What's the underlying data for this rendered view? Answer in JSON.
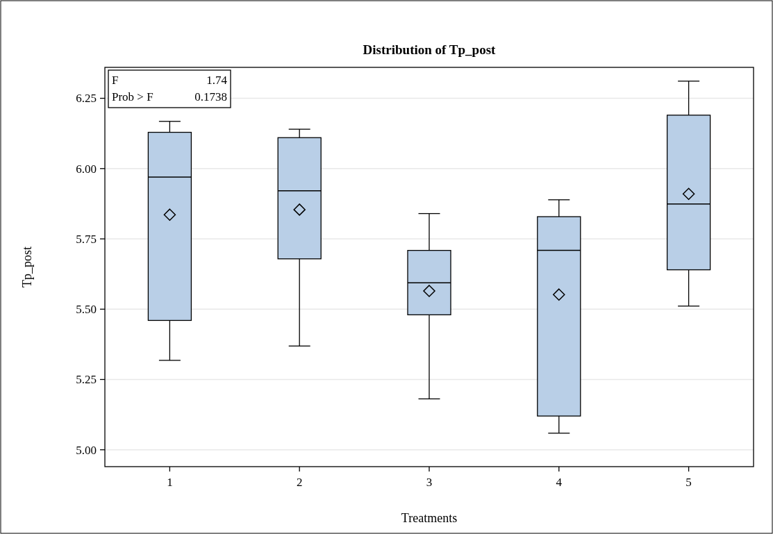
{
  "chart_data": {
    "type": "box",
    "title": "Distribution of Tp_post",
    "xlabel": "Treatments",
    "ylabel": "Tp_post",
    "categories": [
      "1",
      "2",
      "3",
      "4",
      "5"
    ],
    "series": [
      {
        "color": "#b9cfe7",
        "boxes": [
          {
            "low": 5.318,
            "q1": 5.46,
            "median": 5.97,
            "q3": 6.129,
            "high": 6.168,
            "mean": 5.836
          },
          {
            "low": 5.369,
            "q1": 5.679,
            "median": 5.921,
            "q3": 6.11,
            "high": 6.14,
            "mean": 5.854
          },
          {
            "low": 5.181,
            "q1": 5.48,
            "median": 5.594,
            "q3": 5.709,
            "high": 5.84,
            "mean": 5.565
          },
          {
            "low": 5.059,
            "q1": 5.12,
            "median": 5.709,
            "q3": 5.829,
            "high": 5.889,
            "mean": 5.552
          },
          {
            "low": 5.511,
            "q1": 5.64,
            "median": 5.874,
            "q3": 6.19,
            "high": 6.311,
            "mean": 5.91
          }
        ]
      }
    ],
    "ylim": [
      4.94,
      6.36
    ],
    "yticks": [
      {
        "value": 5,
        "label": "5.00"
      },
      {
        "value": 5.25,
        "label": "5.25"
      },
      {
        "value": 5.5,
        "label": "5.50"
      },
      {
        "value": 5.75,
        "label": "5.75"
      },
      {
        "value": 6,
        "label": "6.00"
      },
      {
        "value": 6.25,
        "label": "6.25"
      }
    ],
    "grid": "y",
    "marker": "diamond",
    "annotations": [
      "F 1.74",
      "Prob > F 0.1738"
    ]
  }
}
